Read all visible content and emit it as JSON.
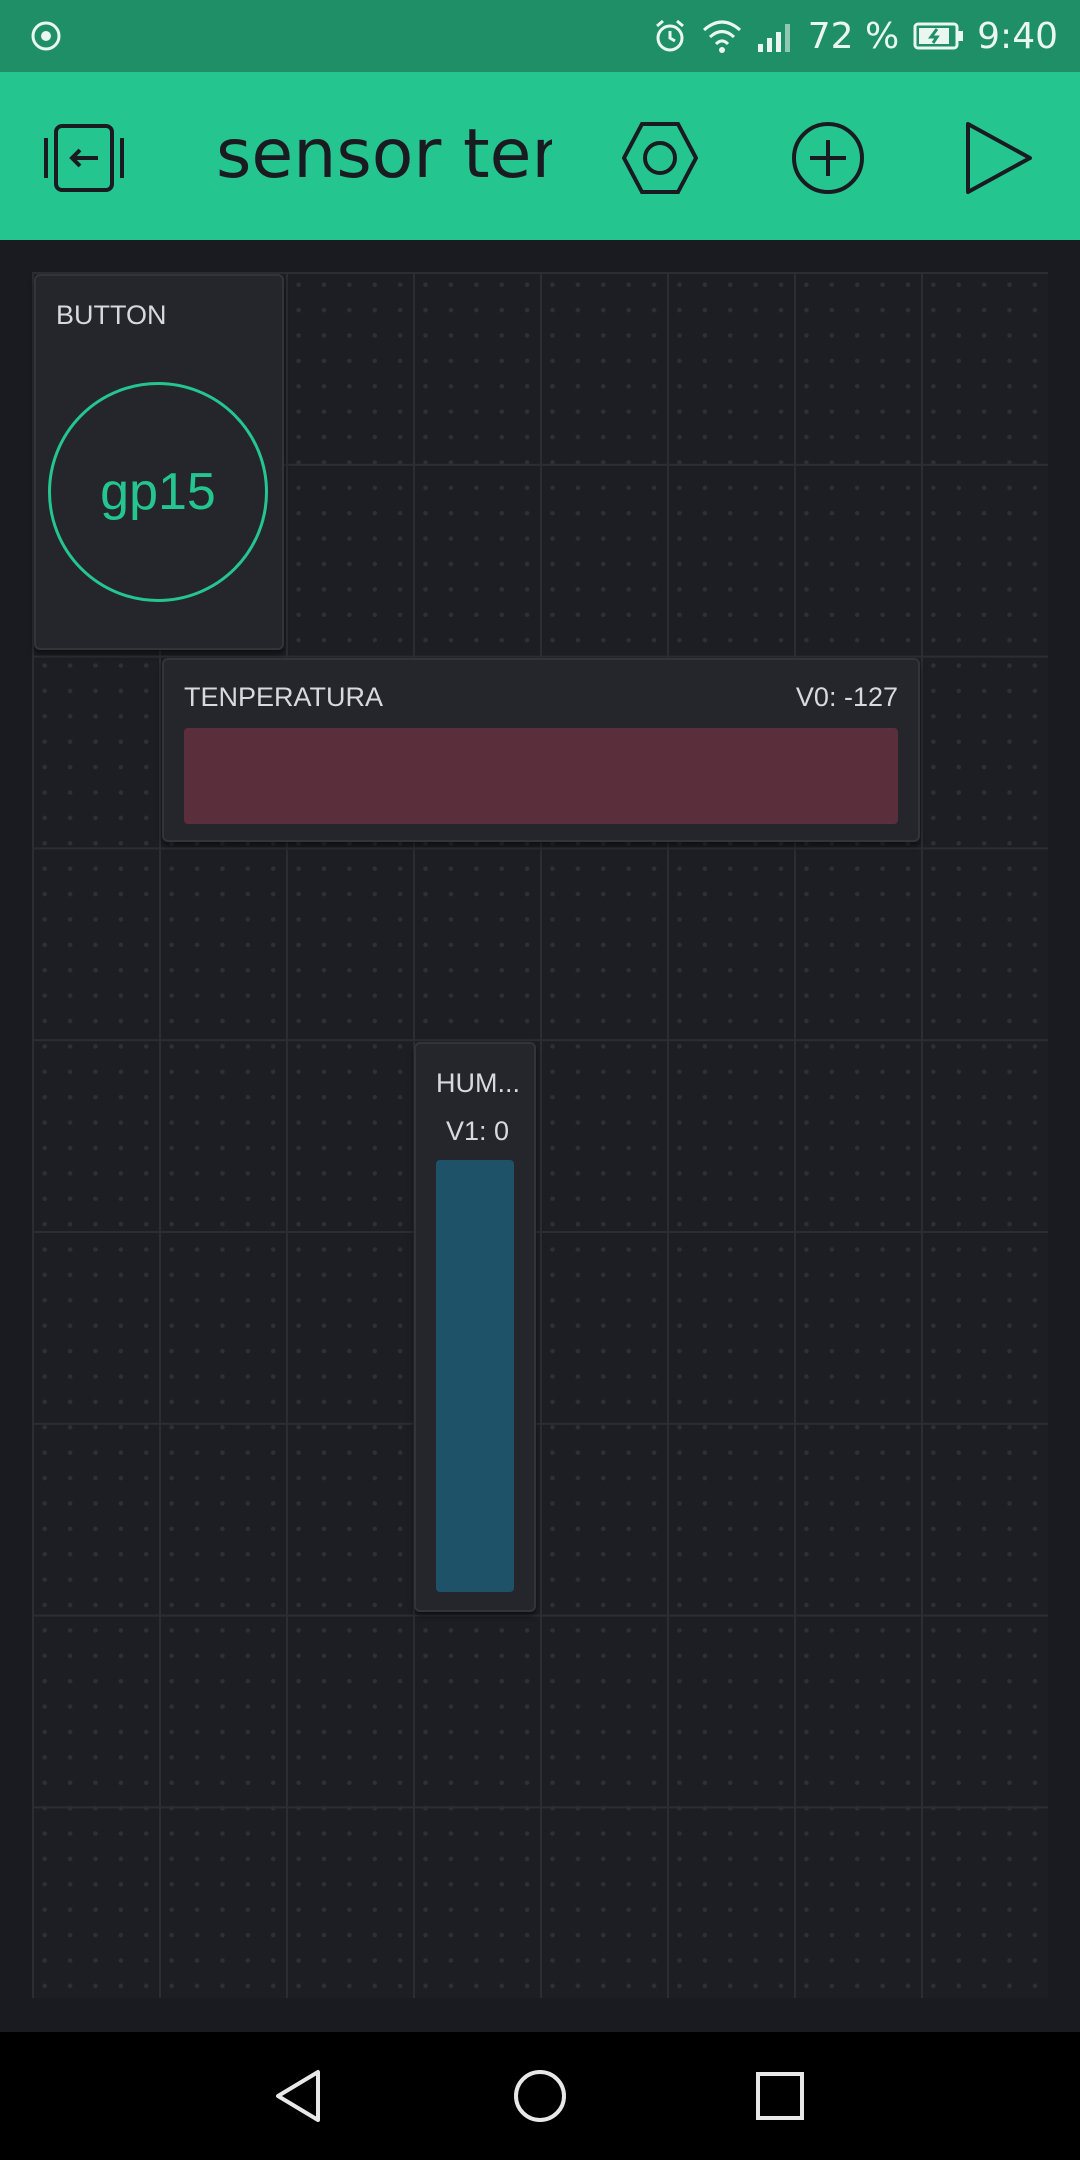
{
  "status_bar": {
    "battery_percent": "72 %",
    "time": "9:40"
  },
  "header": {
    "project_title": "sensor temp"
  },
  "widgets": {
    "button": {
      "label": "BUTTON",
      "pin": "gp15"
    },
    "temperature": {
      "label": "TENPERATURA",
      "value": "V0: -127"
    },
    "humidity": {
      "label": "HUM...",
      "value": "V1: 0"
    }
  },
  "colors": {
    "accent": "#25c590",
    "status_bar": "#1f8f68",
    "background": "#1a1b20",
    "temperature_bar": "#5a2e3b",
    "humidity_bar": "#1e5268"
  }
}
